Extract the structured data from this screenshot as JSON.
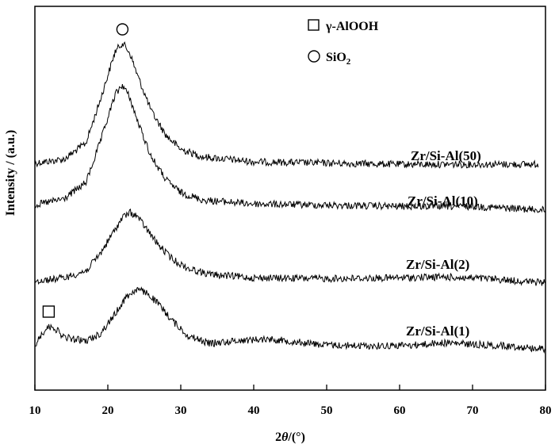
{
  "chart_data": {
    "type": "line",
    "xlabel_prefix": "2",
    "xlabel_symbol": "θ",
    "xlabel_suffix": "/(°)",
    "ylabel": "Intensity / (a.u.)",
    "xlim": [
      10,
      80
    ],
    "xticks": [
      10,
      20,
      30,
      40,
      50,
      60,
      70,
      80
    ],
    "grid": false,
    "legend": [
      {
        "marker": "square",
        "label": "γ-AlOOH"
      },
      {
        "marker": "circle",
        "label_main": "SiO",
        "label_sub": "2"
      }
    ],
    "series": [
      {
        "name": "Zr/Si-Al(50)",
        "x_end": 79,
        "peaks": [
          {
            "x": 22,
            "marker": "circle"
          }
        ],
        "points": [
          [
            10,
            0.04
          ],
          [
            14,
            0.07
          ],
          [
            17,
            0.2
          ],
          [
            19,
            0.55
          ],
          [
            21,
            0.93
          ],
          [
            22,
            1.0
          ],
          [
            23,
            0.92
          ],
          [
            24,
            0.75
          ],
          [
            26,
            0.45
          ],
          [
            28,
            0.26
          ],
          [
            30,
            0.15
          ],
          [
            33,
            0.09
          ],
          [
            40,
            0.05
          ],
          [
            50,
            0.04
          ],
          [
            60,
            0.03
          ],
          [
            70,
            0.03
          ],
          [
            79,
            0.03
          ]
        ]
      },
      {
        "name": "Zr/Si-Al(10)",
        "x_end": 80,
        "peaks": [],
        "points": [
          [
            10,
            0.04
          ],
          [
            14,
            0.09
          ],
          [
            17,
            0.22
          ],
          [
            19,
            0.55
          ],
          [
            21,
            0.92
          ],
          [
            22,
            1.0
          ],
          [
            23,
            0.9
          ],
          [
            24,
            0.72
          ],
          [
            26,
            0.42
          ],
          [
            28,
            0.24
          ],
          [
            30,
            0.14
          ],
          [
            33,
            0.08
          ],
          [
            40,
            0.05
          ],
          [
            50,
            0.04
          ],
          [
            60,
            0.03
          ],
          [
            70,
            0.03
          ],
          [
            80,
            0.0
          ]
        ]
      },
      {
        "name": "Zr/Si-Al(2)",
        "x_end": 80,
        "peaks": [],
        "points": [
          [
            10,
            0.05
          ],
          [
            14,
            0.09
          ],
          [
            17,
            0.17
          ],
          [
            19,
            0.38
          ],
          [
            21,
            0.66
          ],
          [
            22,
            0.8
          ],
          [
            23,
            0.86
          ],
          [
            24,
            0.82
          ],
          [
            25,
            0.7
          ],
          [
            27,
            0.47
          ],
          [
            29,
            0.3
          ],
          [
            31,
            0.2
          ],
          [
            34,
            0.13
          ],
          [
            40,
            0.09
          ],
          [
            50,
            0.08
          ],
          [
            60,
            0.09
          ],
          [
            66,
            0.1
          ],
          [
            72,
            0.08
          ],
          [
            80,
            0.03
          ]
        ]
      },
      {
        "name": "Zr/Si-Al(1)",
        "x_end": 80,
        "peaks": [
          {
            "x": 12,
            "marker": "square"
          }
        ],
        "points": [
          [
            10,
            0.1
          ],
          [
            11.5,
            0.32
          ],
          [
            12.5,
            0.34
          ],
          [
            14,
            0.2
          ],
          [
            17,
            0.15
          ],
          [
            19,
            0.25
          ],
          [
            21,
            0.5
          ],
          [
            22.5,
            0.72
          ],
          [
            24,
            0.82
          ],
          [
            25.5,
            0.76
          ],
          [
            27,
            0.62
          ],
          [
            29,
            0.4
          ],
          [
            31,
            0.22
          ],
          [
            34,
            0.12
          ],
          [
            38,
            0.16
          ],
          [
            42,
            0.18
          ],
          [
            46,
            0.14
          ],
          [
            50,
            0.1
          ],
          [
            56,
            0.09
          ],
          [
            62,
            0.1
          ],
          [
            66,
            0.13
          ],
          [
            70,
            0.11
          ],
          [
            76,
            0.08
          ],
          [
            80,
            0.05
          ]
        ]
      }
    ]
  }
}
